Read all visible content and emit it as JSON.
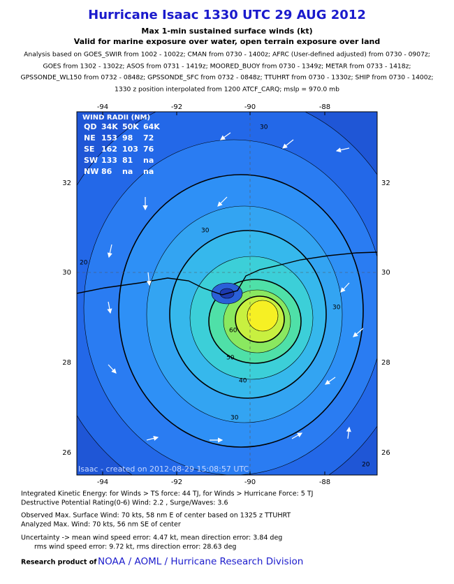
{
  "header": {
    "title": "Hurricane Isaac 1330 UTC 29 AUG 2012",
    "subtitle": "Max 1-min sustained surface winds (kt)",
    "subtitle2": "Valid for marine exposure over water, open terrain exposure over land",
    "analysis": [
      "Analysis based on GOES_SWIR from 1002 - 1002z; CMAN from 0730 - 1400z; AFRC (User-defined adjusted) from 0730 - 0907z;",
      "GOES from 1302 - 1302z; ASOS from 0731 - 1419z; MOORED_BUOY from 0730 - 1349z; METAR from 0733 - 1418z;",
      "GPSSONDE_WL150 from 0732 - 0848z; GPSSONDE_SFC from 0732 - 0848z; TTUHRT from 0730 - 1330z; SHIP from 0730 - 1400z;",
      "1330 z position interpolated from 1200 ATCF_CARQ; mslp = 970.0 mb"
    ]
  },
  "map": {
    "lon_labels": [
      "-94",
      "-92",
      "-90",
      "-88"
    ],
    "lat_labels": [
      "32",
      "30",
      "28",
      "26"
    ],
    "wind_radii": {
      "title": "WIND RADII (NM)",
      "header": [
        "QD",
        "34K",
        "50K",
        "64K"
      ],
      "rows": [
        [
          "NE",
          "153",
          "98",
          "72"
        ],
        [
          "SE",
          "162",
          "103",
          "76"
        ],
        [
          "SW",
          "133",
          "81",
          "na"
        ],
        [
          "NW",
          "86",
          "na",
          "na"
        ]
      ]
    },
    "contour_labels": [
      "30",
      "60",
      "50",
      "40",
      "30",
      "30",
      "20",
      "20",
      "30"
    ],
    "credit": "Isaac - created on 2012-08-29 15:08:57 UTC"
  },
  "footer": {
    "lines": [
      "Integrated Kinetic Energy: for Winds > TS force: 44 TJ, for Winds > Hurricane Force: 5 TJ",
      "Destructive Potential Rating(0-6)  Wind: 2.2 , Surge/Waves: 3.6",
      "Observed Max. Surface Wind: 70 kts, 58 nm E of center based on 1325 z TTUHRT",
      "Analyzed Max. Wind: 70 kts, 56 nm  SE of center",
      "Uncertainty -> mean wind speed error: 4.47 kt, mean direction error: 3.84 deg",
      "rms wind speed error: 9.72 kt, rms direction error: 28.63 deg"
    ],
    "research": "Research product of",
    "org": "NOAA / AOML / Hurricane Research Division"
  }
}
